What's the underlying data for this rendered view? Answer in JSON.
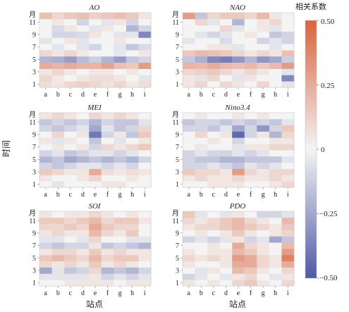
{
  "chart_data": [
    {
      "type": "heatmap",
      "title": "AO",
      "x": [
        "a",
        "b",
        "c",
        "d",
        "e",
        "f",
        "g",
        "h",
        "i"
      ],
      "y": [
        1,
        2,
        3,
        4,
        5,
        6,
        7,
        8,
        9,
        10,
        11,
        12
      ],
      "values": [
        [
          0.08,
          0.05,
          0.1,
          0.12,
          0.1,
          0.06,
          0.1,
          0.04,
          0.08
        ],
        [
          0.1,
          0.04,
          0.0,
          0.05,
          0.08,
          0.08,
          0.05,
          0.0,
          -0.05
        ],
        [
          0.05,
          0.1,
          0.05,
          0.0,
          0.05,
          0.05,
          0.0,
          0.05,
          0.0
        ],
        [
          0.25,
          0.22,
          0.25,
          0.22,
          0.22,
          0.28,
          0.18,
          0.15,
          0.3
        ],
        [
          -0.2,
          -0.22,
          -0.28,
          -0.18,
          -0.12,
          -0.2,
          -0.28,
          -0.15,
          -0.1
        ],
        [
          0.1,
          0.05,
          0.1,
          0.04,
          0.0,
          0.0,
          -0.04,
          0.0,
          0.05
        ],
        [
          0.0,
          -0.05,
          0.0,
          -0.05,
          -0.1,
          0.0,
          -0.05,
          -0.15,
          -0.08
        ],
        [
          -0.05,
          0.0,
          0.05,
          -0.05,
          0.0,
          0.0,
          0.05,
          0.0,
          0.0
        ],
        [
          0.0,
          -0.1,
          -0.1,
          -0.08,
          0.05,
          0.0,
          -0.05,
          -0.05,
          -0.35
        ],
        [
          0.0,
          -0.08,
          0.05,
          0.0,
          -0.05,
          0.05,
          0.0,
          -0.2,
          -0.1
        ],
        [
          0.0,
          0.05,
          0.0,
          -0.1,
          0.0,
          -0.05,
          0.05,
          -0.1,
          0.0
        ],
        [
          0.18,
          0.1,
          0.15,
          0.18,
          0.12,
          0.15,
          0.18,
          0.15,
          0.05
        ]
      ]
    },
    {
      "type": "heatmap",
      "title": "NAO",
      "x": [
        "a",
        "b",
        "c",
        "d",
        "e",
        "f",
        "g",
        "h",
        "i"
      ],
      "y": [
        1,
        2,
        3,
        4,
        5,
        6,
        7,
        8,
        9,
        10,
        11,
        12
      ],
      "values": [
        [
          0.05,
          0.1,
          0.0,
          0.1,
          0.05,
          0.0,
          0.1,
          0.0,
          -0.05
        ],
        [
          0.05,
          -0.05,
          0.1,
          0.0,
          -0.05,
          0.05,
          0.0,
          0.0,
          -0.35
        ],
        [
          0.1,
          0.12,
          0.15,
          0.1,
          0.05,
          0.1,
          0.05,
          0.0,
          -0.05
        ],
        [
          0.22,
          0.2,
          0.25,
          0.2,
          0.18,
          0.2,
          0.15,
          0.2,
          0.3
        ],
        [
          -0.15,
          -0.22,
          -0.35,
          -0.38,
          -0.3,
          -0.2,
          -0.3,
          -0.25,
          -0.12
        ],
        [
          0.15,
          0.2,
          0.18,
          0.15,
          0.1,
          0.05,
          0.1,
          0.05,
          0.18
        ],
        [
          0.0,
          0.0,
          0.05,
          0.05,
          -0.05,
          0.0,
          0.0,
          -0.05,
          0.0
        ],
        [
          -0.05,
          0.0,
          0.0,
          -0.08,
          0.0,
          0.0,
          -0.1,
          -0.05,
          -0.1
        ],
        [
          0.0,
          -0.05,
          -0.1,
          -0.05,
          0.0,
          0.05,
          0.0,
          -0.15,
          -0.1
        ],
        [
          0.0,
          0.0,
          0.0,
          0.1,
          -0.05,
          0.0,
          0.05,
          -0.05,
          0.0
        ],
        [
          0.0,
          0.1,
          -0.05,
          0.0,
          -0.2,
          0.0,
          0.05,
          0.1,
          0.0
        ],
        [
          0.3,
          -0.15,
          0.1,
          0.15,
          0.15,
          0.1,
          0.2,
          0.05,
          0.0
        ]
      ]
    },
    {
      "type": "heatmap",
      "title": "MEI",
      "x": [
        "a",
        "b",
        "c",
        "d",
        "e",
        "f",
        "g",
        "h",
        "i"
      ],
      "y": [
        1,
        2,
        3,
        4,
        5,
        6,
        7,
        8,
        9,
        10,
        11,
        12
      ],
      "values": [
        [
          0.0,
          -0.05,
          0.0,
          0.0,
          0.0,
          0.05,
          0.05,
          0.0,
          0.0
        ],
        [
          0.05,
          0.0,
          0.0,
          0.05,
          0.1,
          0.0,
          0.0,
          0.05,
          0.0
        ],
        [
          0.15,
          0.1,
          0.05,
          0.05,
          0.25,
          0.08,
          0.05,
          0.08,
          0.05
        ],
        [
          -0.1,
          -0.15,
          -0.1,
          -0.05,
          -0.05,
          -0.1,
          -0.05,
          -0.1,
          0.0
        ],
        [
          -0.2,
          -0.15,
          -0.25,
          -0.2,
          -0.15,
          -0.2,
          -0.15,
          -0.2,
          -0.1
        ],
        [
          -0.1,
          -0.05,
          -0.15,
          -0.1,
          -0.05,
          -0.05,
          -0.1,
          -0.05,
          0.0
        ],
        [
          0.0,
          0.05,
          0.0,
          0.05,
          -0.1,
          0.1,
          0.05,
          0.1,
          0.15
        ],
        [
          0.05,
          -0.05,
          0.05,
          0.0,
          -0.15,
          0.0,
          -0.05,
          0.0,
          0.05
        ],
        [
          0.0,
          0.1,
          0.0,
          0.05,
          -0.4,
          -0.1,
          0.05,
          -0.15,
          0.15
        ],
        [
          -0.1,
          -0.15,
          -0.1,
          -0.05,
          -0.25,
          -0.05,
          -0.15,
          -0.1,
          0.1
        ],
        [
          -0.15,
          -0.1,
          -0.15,
          -0.1,
          -0.2,
          -0.1,
          -0.15,
          -0.15,
          -0.05
        ],
        [
          0.05,
          0.1,
          0.05,
          0.0,
          0.1,
          0.05,
          0.1,
          0.05,
          0.0
        ]
      ]
    },
    {
      "type": "heatmap",
      "title": "Nino3.4",
      "x": [
        "a",
        "b",
        "c",
        "d",
        "e",
        "f",
        "g",
        "h",
        "i"
      ],
      "y": [
        1,
        2,
        3,
        4,
        5,
        6,
        7,
        8,
        9,
        10,
        11,
        12
      ],
      "values": [
        [
          0.0,
          0.0,
          0.05,
          0.05,
          0.05,
          0.0,
          0.0,
          0.05,
          0.1
        ],
        [
          0.05,
          0.1,
          0.05,
          0.05,
          0.1,
          0.05,
          0.05,
          0.1,
          0.05
        ],
        [
          0.15,
          0.1,
          0.1,
          0.05,
          0.3,
          0.1,
          0.05,
          0.1,
          0.1
        ],
        [
          -0.1,
          -0.1,
          -0.05,
          -0.1,
          -0.15,
          -0.05,
          -0.1,
          -0.05,
          0.0
        ],
        [
          -0.1,
          -0.15,
          -0.15,
          -0.2,
          -0.2,
          -0.15,
          -0.15,
          -0.15,
          -0.05
        ],
        [
          -0.1,
          -0.05,
          -0.1,
          -0.1,
          -0.05,
          -0.1,
          -0.05,
          0.0,
          0.0
        ],
        [
          0.0,
          0.05,
          0.0,
          0.0,
          -0.05,
          0.05,
          0.05,
          0.1,
          0.1
        ],
        [
          0.0,
          0.0,
          0.05,
          0.0,
          -0.1,
          0.0,
          0.0,
          0.05,
          0.05
        ],
        [
          0.0,
          0.1,
          0.0,
          0.05,
          -0.45,
          -0.1,
          0.05,
          -0.2,
          0.1
        ],
        [
          -0.1,
          -0.1,
          -0.15,
          -0.05,
          -0.25,
          -0.1,
          -0.3,
          -0.1,
          0.15
        ],
        [
          -0.15,
          -0.1,
          -0.1,
          -0.15,
          -0.1,
          -0.15,
          -0.1,
          -0.15,
          -0.05
        ],
        [
          0.0,
          0.05,
          0.0,
          0.0,
          0.05,
          0.0,
          0.05,
          0.0,
          0.0
        ]
      ]
    },
    {
      "type": "heatmap",
      "title": "SOI",
      "x": [
        "a",
        "b",
        "c",
        "d",
        "e",
        "f",
        "g",
        "h",
        "i"
      ],
      "y": [
        1,
        2,
        3,
        4,
        5,
        6,
        7,
        8,
        9,
        10,
        11,
        12
      ],
      "values": [
        [
          0.0,
          0.0,
          0.05,
          0.05,
          0.05,
          0.05,
          0.0,
          0.05,
          0.05
        ],
        [
          -0.05,
          -0.05,
          -0.05,
          -0.05,
          0.05,
          -0.1,
          -0.05,
          -0.1,
          -0.05
        ],
        [
          -0.25,
          -0.05,
          -0.15,
          -0.1,
          0.1,
          -0.2,
          -0.15,
          -0.2,
          -0.1
        ],
        [
          0.1,
          0.05,
          0.1,
          0.05,
          0.15,
          0.05,
          0.1,
          0.05,
          0.0
        ],
        [
          0.15,
          0.2,
          0.15,
          0.1,
          0.2,
          0.1,
          0.15,
          0.15,
          0.05
        ],
        [
          0.05,
          0.1,
          0.1,
          0.05,
          0.15,
          0.05,
          0.1,
          0.05,
          0.05
        ],
        [
          -0.1,
          -0.15,
          -0.1,
          -0.1,
          0.05,
          -0.15,
          -0.1,
          -0.15,
          -0.2
        ],
        [
          -0.05,
          -0.05,
          0.0,
          -0.05,
          0.1,
          0.0,
          0.0,
          -0.05,
          -0.05
        ],
        [
          0.05,
          0.1,
          0.05,
          0.05,
          0.2,
          0.1,
          0.05,
          0.15,
          0.0
        ],
        [
          0.1,
          0.1,
          0.15,
          0.1,
          0.25,
          0.15,
          0.1,
          0.1,
          0.0
        ],
        [
          0.15,
          0.15,
          0.1,
          0.15,
          0.2,
          0.1,
          0.15,
          0.15,
          0.05
        ],
        [
          0.05,
          0.0,
          0.05,
          0.05,
          0.1,
          0.05,
          0.0,
          0.05,
          0.0
        ]
      ]
    },
    {
      "type": "heatmap",
      "title": "PDO",
      "x": [
        "a",
        "b",
        "c",
        "d",
        "e",
        "f",
        "g",
        "h",
        "i"
      ],
      "y": [
        1,
        2,
        3,
        4,
        5,
        6,
        7,
        8,
        9,
        10,
        11,
        12
      ],
      "values": [
        [
          0.05,
          0.0,
          0.05,
          0.0,
          0.1,
          0.15,
          0.05,
          0.0,
          0.1
        ],
        [
          -0.1,
          -0.05,
          0.0,
          -0.05,
          0.05,
          0.1,
          0.0,
          -0.05,
          0.05
        ],
        [
          0.0,
          -0.05,
          0.05,
          0.0,
          0.2,
          0.15,
          0.05,
          0.0,
          0.1
        ],
        [
          0.05,
          0.0,
          0.0,
          0.05,
          0.25,
          0.25,
          0.1,
          0.05,
          0.25
        ],
        [
          0.1,
          0.05,
          0.1,
          0.05,
          0.3,
          0.25,
          0.1,
          0.05,
          0.4
        ],
        [
          0.05,
          0.0,
          0.05,
          0.05,
          0.2,
          0.15,
          0.05,
          0.0,
          0.3
        ],
        [
          0.0,
          0.0,
          0.05,
          0.0,
          0.25,
          0.1,
          0.05,
          0.0,
          0.2
        ],
        [
          -0.1,
          -0.05,
          -0.1,
          -0.05,
          0.05,
          -0.1,
          -0.05,
          -0.25,
          -0.15
        ],
        [
          0.0,
          0.05,
          0.0,
          0.05,
          0.15,
          0.05,
          0.0,
          0.05,
          0.1
        ],
        [
          0.05,
          0.1,
          0.1,
          0.15,
          0.2,
          0.15,
          0.1,
          0.05,
          0.15
        ],
        [
          0.1,
          0.05,
          0.1,
          0.15,
          0.2,
          0.1,
          0.05,
          0.0,
          0.2
        ],
        [
          0.15,
          -0.05,
          0.0,
          -0.05,
          0.05,
          0.0,
          -0.1,
          -0.1,
          -0.05
        ]
      ]
    }
  ],
  "x_ticks": [
    "a",
    "b",
    "c",
    "d",
    "e",
    "f",
    "g",
    "h",
    "i"
  ],
  "y_ticks": [
    "1",
    "3",
    "5",
    "7",
    "9",
    "11"
  ],
  "y_top_label": "月",
  "axis_labels": {
    "x": "站点",
    "y": "时间"
  },
  "colorbar": {
    "title": "相关系数",
    "ticks": [
      "0.50",
      "0.25",
      "0",
      "−0.25",
      "−0.50"
    ],
    "range": [
      -0.5,
      0.5
    ],
    "colors": {
      "negative": "#4f59a6",
      "zero": "#f4f4f4",
      "positive": "#d8633e"
    }
  }
}
